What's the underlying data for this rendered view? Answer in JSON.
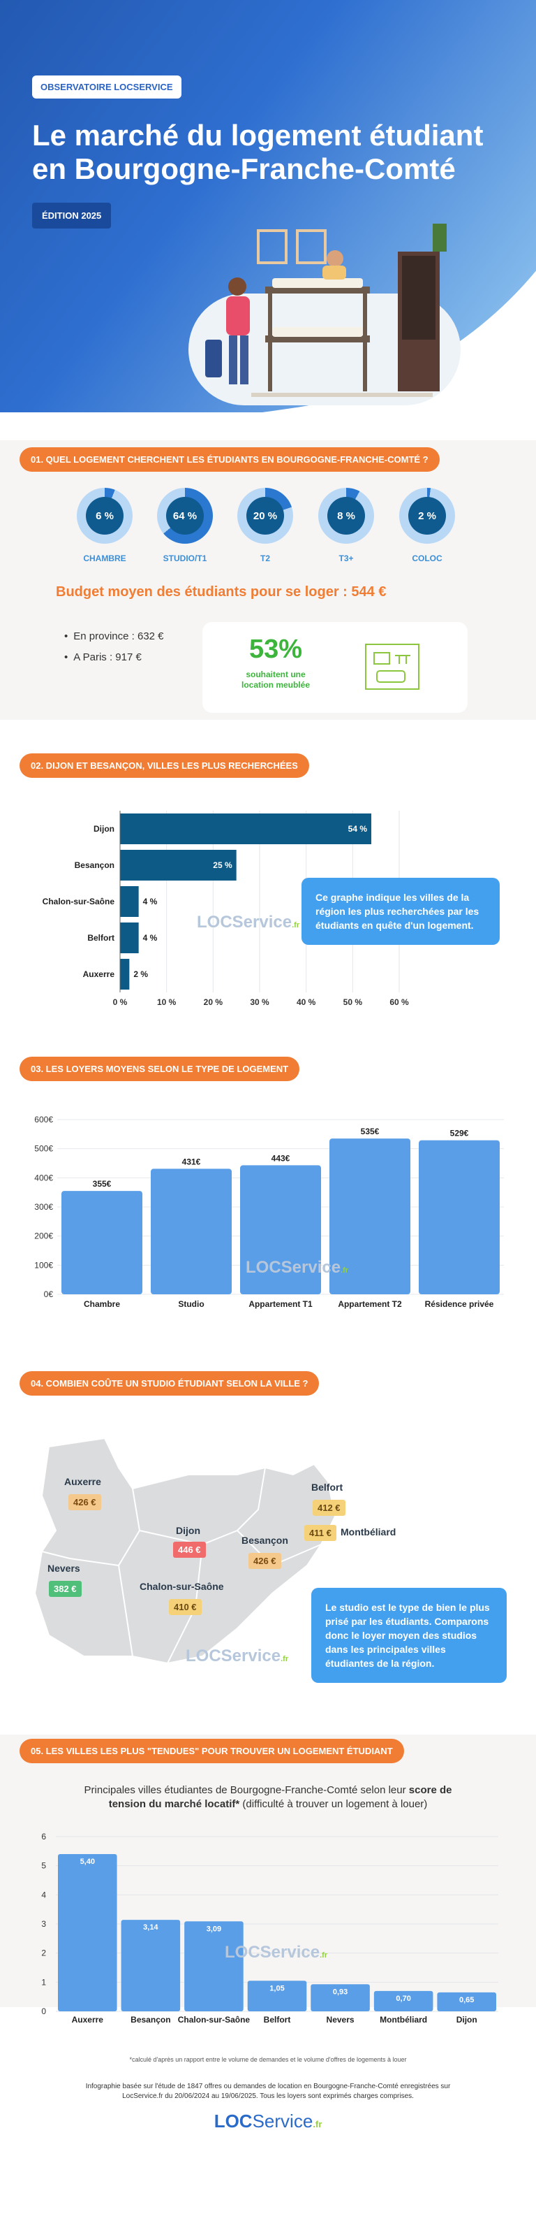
{
  "hero": {
    "chip": "OBSERVATOIRE LOCSERVICE",
    "title_line1": "Le marché du logement étudiant",
    "title_line2": "en Bourgogne-Franche-Comté",
    "edition": "ÉDITION 2025"
  },
  "s1": {
    "heading": "01. QUEL LOGEMENT CHERCHENT LES ÉTUDIANTS EN BOURGOGNE-FRANCHE-COMTÉ ?",
    "types": [
      {
        "label": "CHAMBRE",
        "value": "6 %",
        "pct": 6
      },
      {
        "label": "STUDIO/T1",
        "value": "64 %",
        "pct": 64
      },
      {
        "label": "T2",
        "value": "20 %",
        "pct": 20
      },
      {
        "label": "T3+",
        "value": "8 %",
        "pct": 8
      },
      {
        "label": "COLOC",
        "value": "2 %",
        "pct": 2
      }
    ],
    "budget_title": "Budget moyen des étudiants pour se loger : 544 €",
    "bullets": [
      "En province : 632 €",
      "A Paris : 917 €"
    ],
    "furnished_pct": "53%",
    "furnished_text1": "souhaitent une",
    "furnished_text2": "location meublée"
  },
  "s2": {
    "heading": "02. DIJON ET BESANÇON, VILLES LES PLUS RECHERCHÉES",
    "info": "Ce graphe indique les villes de la région les plus recherchées par les étudiants en quête d'un logement."
  },
  "s3": {
    "heading": "03. LES LOYERS MOYENS SELON LE TYPE DE LOGEMENT"
  },
  "s4": {
    "heading": "04. COMBIEN COÛTE UN STUDIO ÉTUDIANT SELON LA VILLE ?",
    "cities": [
      {
        "name": "Auxerre",
        "rent": "426 €"
      },
      {
        "name": "Nevers",
        "rent": "382 €"
      },
      {
        "name": "Dijon",
        "rent": "446 €"
      },
      {
        "name": "Chalon-sur-Saône",
        "rent": "410 €"
      },
      {
        "name": "Besançon",
        "rent": "426 €"
      },
      {
        "name": "Belfort",
        "rent": "412 €"
      },
      {
        "name": "Montbéliard",
        "rent": "411 €"
      }
    ],
    "info": "Le studio est le type de bien le plus prisé par les étudiants. Comparons donc le loyer moyen des studios dans les principales villes étudiantes de la région."
  },
  "s5": {
    "heading": "05. LES VILLES LES PLUS \"TENDUES\" POUR TROUVER UN LOGEMENT ÉTUDIANT",
    "sub1": "Principales villes étudiantes de Bourgogne-Franche-Comté selon leur",
    "sub_bold1": "score de",
    "sub_bold2": "tension du marché locatif*",
    "sub2": "(difficulté à trouver un logement à louer)"
  },
  "footer": {
    "note": "*calculé d'après un rapport entre le volume de demandes et le volume d'offres de logements à louer",
    "line1": "Infographie basée sur l'étude de 1847 offres ou demandes de location en Bourgogne-Franche-Comté enregistrées sur",
    "line2": "LocService.fr du 20/06/2024 au 19/06/2025. Tous les loyers sont exprimés charges comprises."
  },
  "brand": {
    "loc": "LOC",
    "service": "Service",
    "fr": ".fr"
  },
  "colors": {
    "orange": "#f07d33",
    "blue": "#5b9ee8",
    "navy": "#0d5a86",
    "green": "#3db53d"
  },
  "chart_data": [
    {
      "type": "bar",
      "orientation": "horizontal",
      "categories": [
        "Dijon",
        "Besançon",
        "Chalon-sur-Saône",
        "Belfort",
        "Auxerre"
      ],
      "values": [
        54,
        25,
        4,
        4,
        2
      ],
      "value_labels": [
        "54 %",
        "25 %",
        "4 %",
        "4 %",
        "2 %"
      ],
      "xlim": [
        0,
        60
      ],
      "ticks": [
        "0 %",
        "10 %",
        "20 %",
        "30 %",
        "40 %",
        "50 %",
        "60 %"
      ]
    },
    {
      "type": "bar",
      "categories": [
        "Chambre",
        "Studio",
        "Appartement T1",
        "Appartement T2",
        "Résidence privée"
      ],
      "values": [
        355,
        431,
        443,
        535,
        529
      ],
      "value_labels": [
        "355€",
        "431€",
        "443€",
        "535€",
        "529€"
      ],
      "ylim": [
        0,
        600
      ],
      "ticks": [
        "0€",
        "100€",
        "200€",
        "300€",
        "400€",
        "500€",
        "600€"
      ]
    },
    {
      "type": "bar",
      "categories": [
        "Auxerre",
        "Besançon",
        "Chalon-sur-Saône",
        "Belfort",
        "Nevers",
        "Montbéliard",
        "Dijon"
      ],
      "values": [
        5.4,
        3.14,
        3.09,
        1.05,
        0.93,
        0.7,
        0.65
      ],
      "value_labels": [
        "5,40",
        "3,14",
        "3,09",
        "1,05",
        "0,93",
        "0,70",
        "0,65"
      ],
      "ylim": [
        0,
        6
      ],
      "ticks": [
        "0",
        "1",
        "2",
        "3",
        "4",
        "5",
        "6"
      ]
    }
  ]
}
